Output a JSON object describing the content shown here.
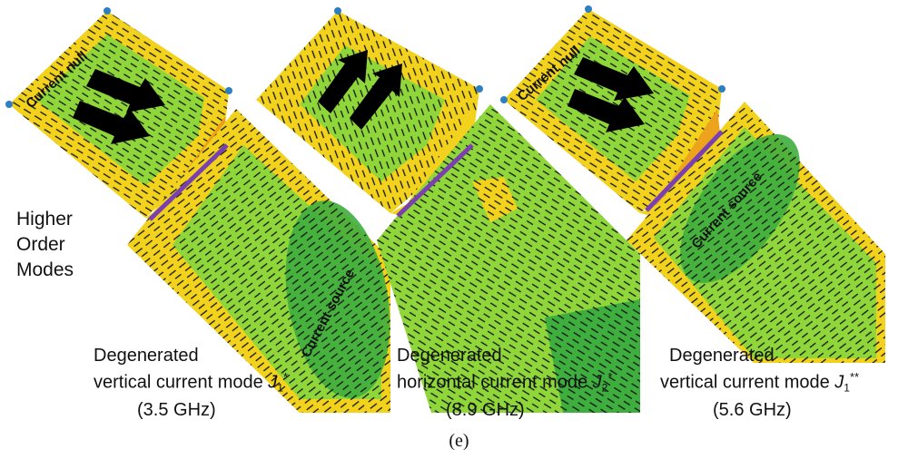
{
  "side_label": [
    "Higher",
    "Order",
    "Modes"
  ],
  "modes": [
    {
      "line1": "Degenerated",
      "line2_prefix": "vertical current mode ",
      "symbol": "J",
      "subscript": "1",
      "superscript": "*",
      "frequency": "(3.5 GHz)",
      "annotations": [
        "Current null",
        "Current source"
      ]
    },
    {
      "line1": "Degenerated",
      "line2_prefix": "horizontal current mode ",
      "symbol": "J",
      "subscript": "2",
      "superscript": "*",
      "frequency": "(8.9 GHz)",
      "annotations": []
    },
    {
      "line1": "Degenerated",
      "line2_prefix": "vertical current mode ",
      "symbol": "J",
      "subscript": "1",
      "superscript": "**",
      "frequency": "(5.6 GHz)",
      "annotations": [
        "Current null",
        "Current source"
      ]
    }
  ],
  "figure_label": "(e)",
  "colors": {
    "background": "#ffffff",
    "field_high": "#f2d21c",
    "field_mid": "#8fd63a",
    "field_low": "#3eae3e",
    "field_peak": "#e8751c",
    "feed_line": "#7a3fb0",
    "vector": "#111111",
    "arrow": "#000000",
    "corner_marker": "#2e7fc0"
  }
}
